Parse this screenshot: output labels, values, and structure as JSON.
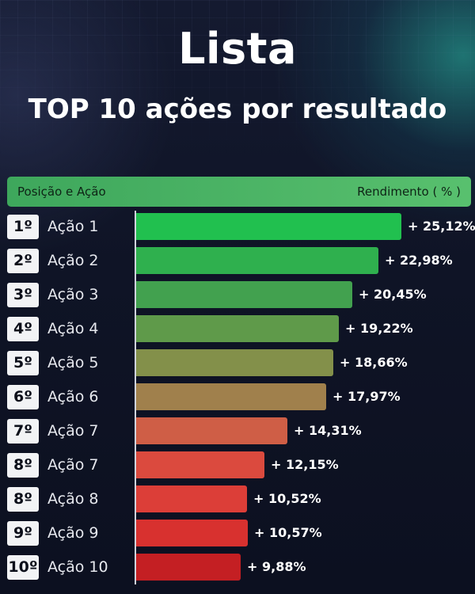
{
  "header": {
    "title": "Lista",
    "subtitle": "TOP 10 ações por resultado"
  },
  "table_header": {
    "left": "Posição e Ação",
    "right": "Rendimento ( % )"
  },
  "colors": {
    "header_bar": "#4fb866",
    "accent_teal": "#2ab7a4",
    "background": "#0f1426"
  },
  "chart_data": {
    "type": "bar",
    "orientation": "horizontal",
    "title": "TOP 10 ações por resultado",
    "xlabel": "",
    "ylabel": "",
    "value_header": "Rendimento ( % )",
    "category_header": "Posição e Ação",
    "xlim": [
      0,
      26
    ],
    "rows": [
      {
        "rank": "1º",
        "name": "Ação 1",
        "value": 25.12,
        "label": "+ 25,12%",
        "color": "#21c04f"
      },
      {
        "rank": "2º",
        "name": "Ação 2",
        "value": 22.98,
        "label": "+ 22,98%",
        "color": "#2fb04e"
      },
      {
        "rank": "3º",
        "name": "Ação 3",
        "value": 20.45,
        "label": "+ 20,45%",
        "color": "#42a14f"
      },
      {
        "rank": "4º",
        "name": "Ação 4",
        "value": 19.22,
        "label": "+ 19,22%",
        "color": "#5f9a4a"
      },
      {
        "rank": "5º",
        "name": "Ação 5",
        "value": 18.66,
        "label": "+ 18,66%",
        "color": "#83904a"
      },
      {
        "rank": "6º",
        "name": "Ação 6",
        "value": 17.97,
        "label": "+ 17,97%",
        "color": "#a0804c"
      },
      {
        "rank": "7º",
        "name": "Ação 7",
        "value": 14.31,
        "label": "+ 14,31%",
        "color": "#cf5e46"
      },
      {
        "rank": "8º",
        "name": "Ação 7",
        "value": 12.15,
        "label": "+ 12,15%",
        "color": "#db4a3e"
      },
      {
        "rank": "8º",
        "name": "Ação 8",
        "value": 10.52,
        "label": "+ 10,52%",
        "color": "#dc3e38"
      },
      {
        "rank": "9º",
        "name": "Ação 9",
        "value": 10.57,
        "label": "+ 10,57%",
        "color": "#d8312f"
      },
      {
        "rank": "10º",
        "name": "Ação 10",
        "value": 9.88,
        "label": "+ 9,88%",
        "color": "#c41f23"
      }
    ]
  }
}
